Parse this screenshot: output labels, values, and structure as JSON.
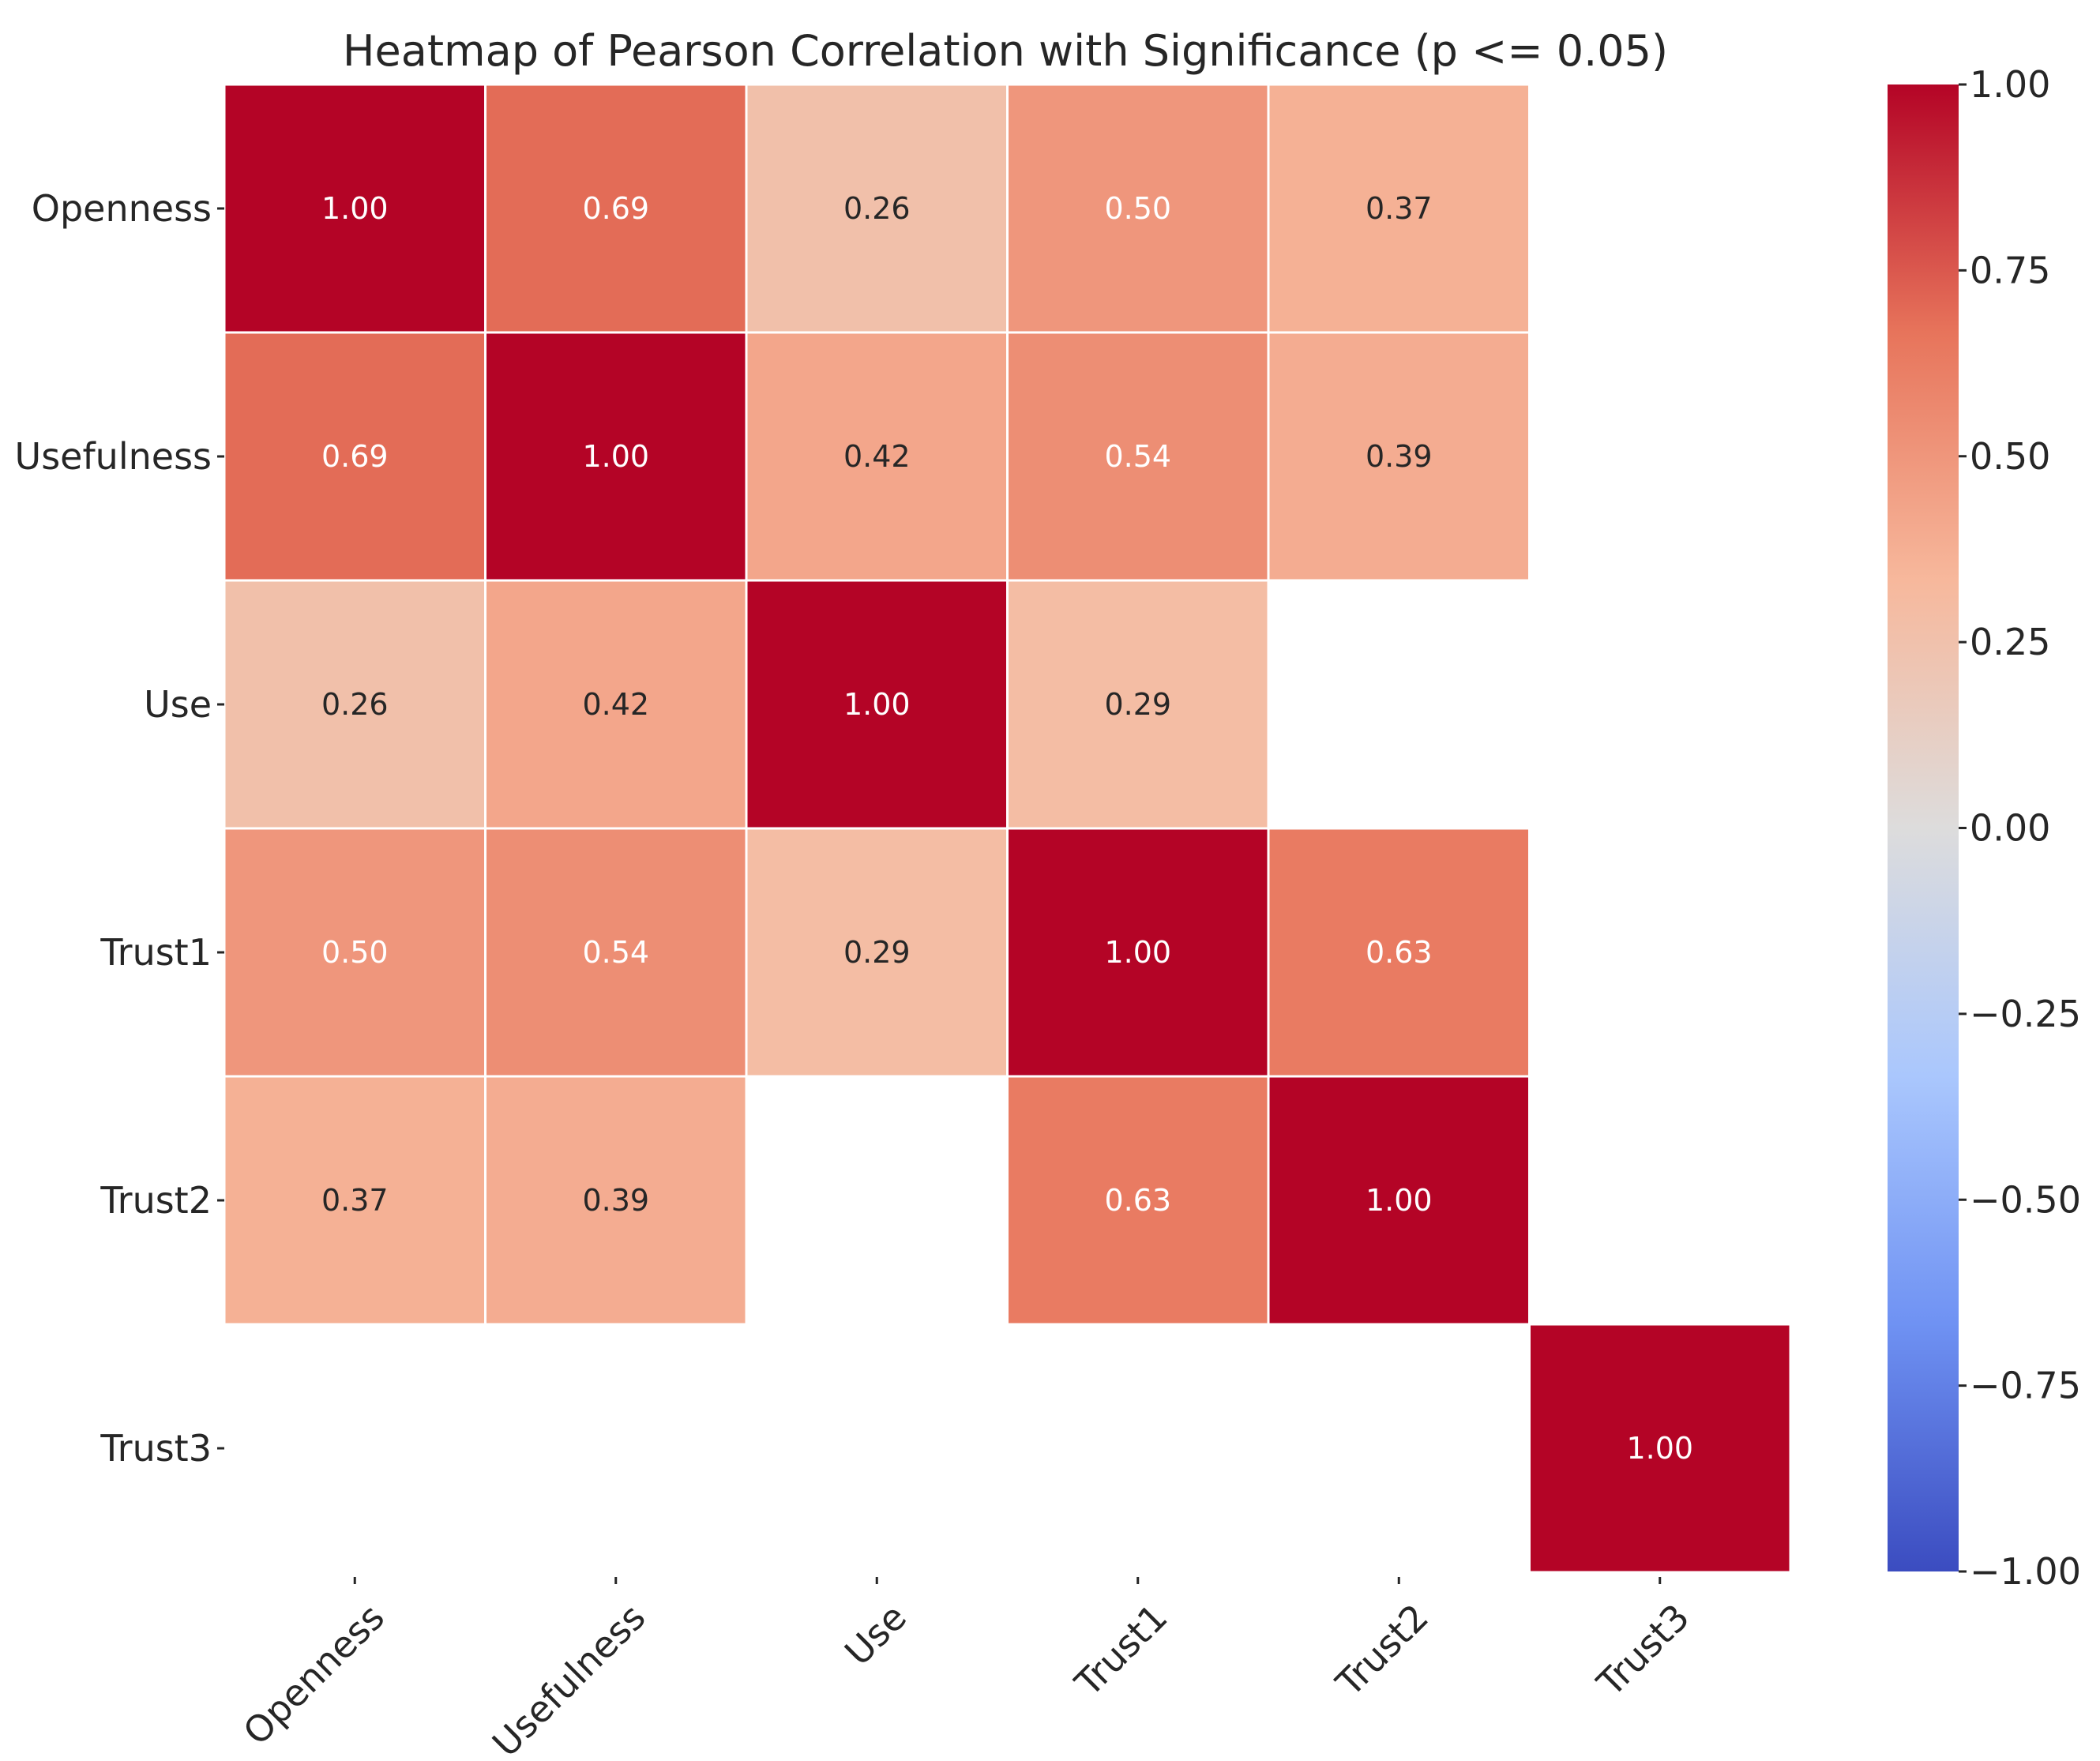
{
  "chart_data": {
    "type": "heatmap",
    "title": "Heatmap of Pearson Correlation with Significance (p <= 0.05)",
    "rows": [
      "Openness",
      "Usefulness",
      "Use",
      "Trust1",
      "Trust2",
      "Trust3"
    ],
    "columns": [
      "Openness",
      "Usefulness",
      "Use",
      "Trust1",
      "Trust2",
      "Trust3"
    ],
    "values": [
      [
        1.0,
        0.69,
        0.26,
        0.5,
        0.37,
        null
      ],
      [
        0.69,
        1.0,
        0.42,
        0.54,
        0.39,
        null
      ],
      [
        0.26,
        0.42,
        1.0,
        0.29,
        null,
        null
      ],
      [
        0.5,
        0.54,
        0.29,
        1.0,
        0.63,
        null
      ],
      [
        0.37,
        0.39,
        null,
        0.63,
        1.0,
        null
      ],
      [
        null,
        null,
        null,
        null,
        null,
        1.0
      ]
    ],
    "value_format": "0.00",
    "colormap": "coolwarm",
    "colormap_stops": [
      "#3b4cc0",
      "#6f92f3",
      "#aac7fd",
      "#dddcdc",
      "#f7b89c",
      "#e7745b",
      "#b40426"
    ],
    "vmin": -1.0,
    "vmax": 1.0,
    "colorbar_ticks": [
      1.0,
      0.75,
      0.5,
      0.25,
      0.0,
      -0.25,
      -0.5,
      -0.75,
      -1.0
    ],
    "colorbar_tick_labels": [
      "1.00",
      "0.75",
      "0.50",
      "0.25",
      "0.00",
      "−0.25",
      "−0.50",
      "−0.75",
      "−1.00"
    ],
    "xlabel": "",
    "ylabel": "",
    "masked_cells_note": "blank cells are not significant (p > 0.05)",
    "text_color_dark": "#262626",
    "text_color_light": "#ffffff",
    "grid_line_color": "#ffffff"
  }
}
